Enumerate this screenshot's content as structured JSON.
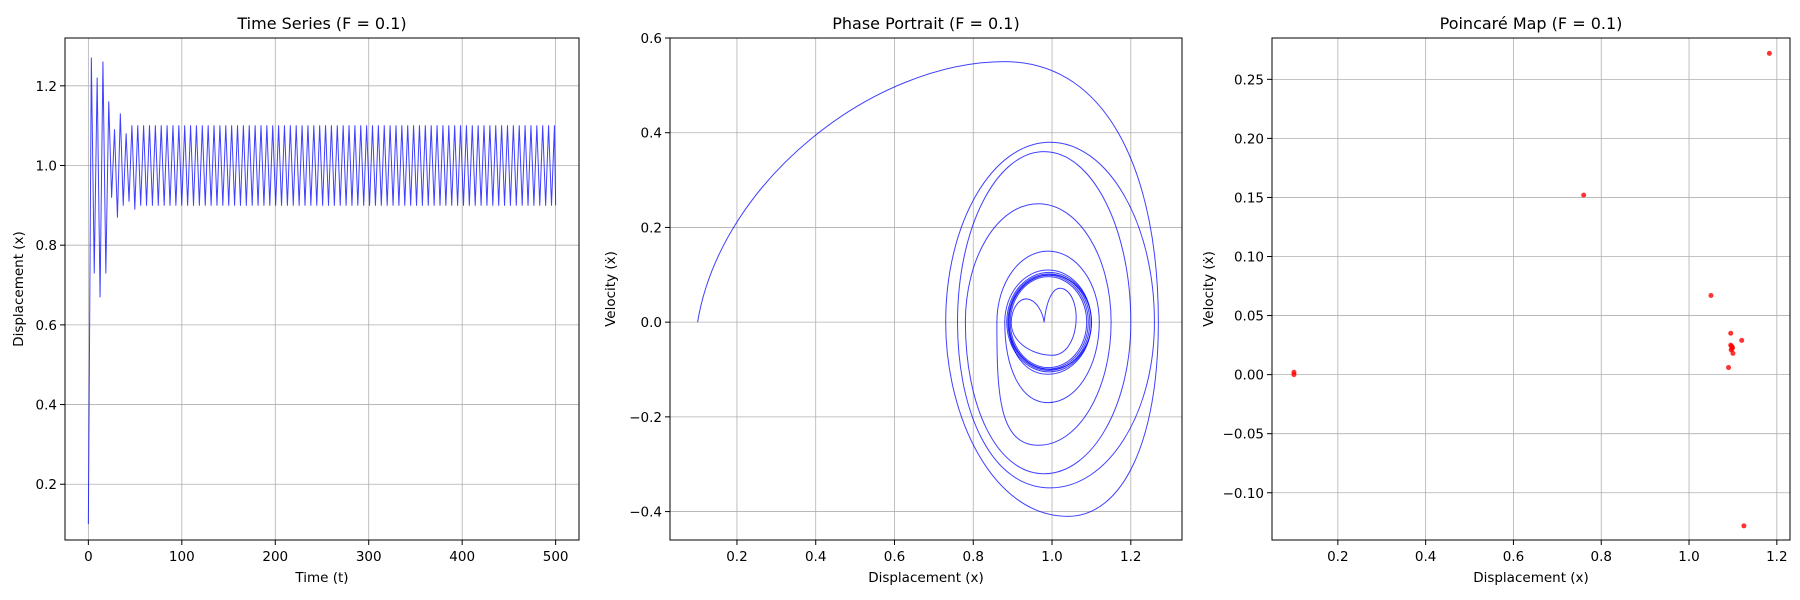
{
  "colors": {
    "line": "#0000ff",
    "points": "#ff0000",
    "grid": "#b0b0b0",
    "axis": "#000000"
  },
  "chart_data": [
    {
      "type": "line",
      "title": "Time Series (F = 0.1)",
      "xlabel": "Time (t)",
      "ylabel": "Displacement (x)",
      "xlim": [
        -25,
        525
      ],
      "ylim": [
        0.06,
        1.32
      ],
      "xticks": [
        0,
        100,
        200,
        300,
        400,
        500
      ],
      "xtick_labels": [
        "0",
        "100",
        "200",
        "300",
        "400",
        "500"
      ],
      "yticks": [
        0.2,
        0.4,
        0.6,
        0.8,
        1.0,
        1.2
      ],
      "ytick_labels": [
        "0.2",
        "0.4",
        "0.6",
        "0.8",
        "1.0",
        "1.2"
      ],
      "grid": true,
      "series": [
        {
          "color": "#0000ff",
          "generator": {
            "kind": "damped_then_periodic",
            "t_end": 500,
            "initial": 0.1,
            "transient_extrema": [
              [
                3.2,
                1.27
              ],
              [
                6.3,
                0.73
              ],
              [
                9.4,
                1.22
              ],
              [
                12.5,
                0.67
              ],
              [
                15.6,
                1.26
              ],
              [
                18.7,
                0.73
              ],
              [
                21.8,
                1.16
              ],
              [
                24.9,
                0.92
              ],
              [
                28,
                1.09
              ],
              [
                31.1,
                0.87
              ],
              [
                34.2,
                1.13
              ],
              [
                37.3,
                0.9
              ],
              [
                40.4,
                1.08
              ],
              [
                43.5,
                0.91
              ],
              [
                46.6,
                1.1
              ],
              [
                49.7,
                0.89
              ]
            ],
            "steady_center": 1.0,
            "steady_amplitude": 0.1,
            "steady_period": 6.28
          }
        }
      ]
    },
    {
      "type": "line",
      "title": "Phase Portrait (F = 0.1)",
      "xlabel": "Displacement (x)",
      "ylabel": "Velocity (ẋ)",
      "xlim": [
        0.03,
        1.33
      ],
      "ylim": [
        -0.46,
        0.6
      ],
      "xticks": [
        0.2,
        0.4,
        0.6,
        0.8,
        1.0,
        1.2
      ],
      "xtick_labels": [
        "0.2",
        "0.4",
        "0.6",
        "0.8",
        "1.0",
        "1.2"
      ],
      "yticks": [
        -0.4,
        -0.2,
        0.0,
        0.2,
        0.4,
        0.6
      ],
      "ytick_labels": [
        "−0.4",
        "−0.2",
        "0.0",
        "0.2",
        "0.4",
        "0.6"
      ],
      "grid": true,
      "series": [
        {
          "color": "#0000ff",
          "generator": {
            "kind": "spiral",
            "start": [
              0.1,
              0.0
            ],
            "first_max": [
              0.88,
              0.55
            ],
            "first_right": 1.27,
            "first_min": [
              1.04,
              -0.41
            ],
            "loops": [
              {
                "left": 0.73,
                "right": 1.26,
                "top": 0.38,
                "bottom": -0.35
              },
              {
                "left": 0.76,
                "right": 1.2,
                "top": 0.36,
                "bottom": -0.32
              },
              {
                "left": 0.78,
                "right": 1.15,
                "top": 0.25,
                "bottom": -0.26
              },
              {
                "left": 0.86,
                "right": 1.12,
                "top": 0.15,
                "bottom": -0.17
              },
              {
                "left": 0.88,
                "right": 1.1,
                "top": 0.11,
                "bottom": -0.11
              },
              {
                "left": 0.89,
                "right": 1.1,
                "top": 0.1,
                "bottom": -0.1
              }
            ],
            "cusp": [
              0.98,
              0.0
            ]
          }
        }
      ]
    },
    {
      "type": "scatter",
      "title": "Poincaré Map (F = 0.1)",
      "xlabel": "Displacement (x)",
      "ylabel": "Velocity (ẋ)",
      "xlim": [
        0.05,
        1.23
      ],
      "ylim": [
        -0.14,
        0.285
      ],
      "xticks": [
        0.2,
        0.4,
        0.6,
        0.8,
        1.0,
        1.2
      ],
      "xtick_labels": [
        "0.2",
        "0.4",
        "0.6",
        "0.8",
        "1.0",
        "1.2"
      ],
      "yticks": [
        -0.1,
        -0.05,
        0.0,
        0.05,
        0.1,
        0.15,
        0.2,
        0.25
      ],
      "ytick_labels": [
        "−0.10",
        "−0.05",
        "0.00",
        "0.05",
        "0.10",
        "0.15",
        "0.20",
        "0.25"
      ],
      "grid": true,
      "series": [
        {
          "color": "#ff0000",
          "points": [
            [
              0.1,
              0.002
            ],
            [
              0.1,
              0.0
            ],
            [
              0.76,
              0.152
            ],
            [
              1.183,
              0.272
            ],
            [
              1.05,
              0.067
            ],
            [
              1.095,
              0.035
            ],
            [
              1.12,
              0.029
            ],
            [
              1.095,
              0.025
            ],
            [
              1.097,
              0.024
            ],
            [
              1.098,
              0.022
            ],
            [
              1.096,
              0.021
            ],
            [
              1.099,
              0.023
            ],
            [
              1.1,
              0.018
            ],
            [
              1.09,
              0.006
            ],
            [
              1.125,
              -0.128
            ]
          ]
        }
      ]
    }
  ]
}
